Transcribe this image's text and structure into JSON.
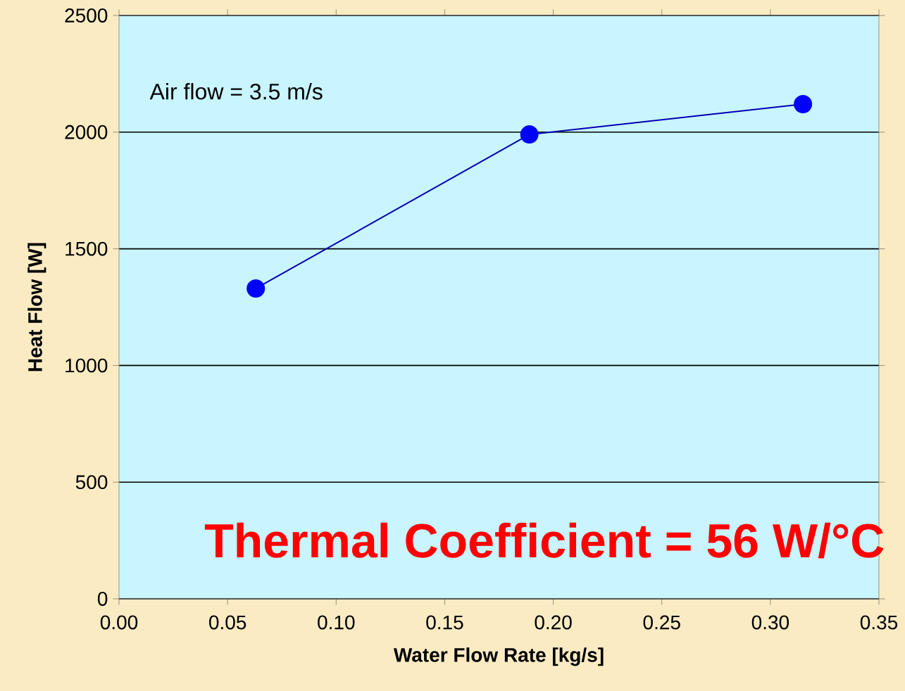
{
  "chart_data": {
    "type": "line",
    "xlabel": "Water Flow Rate [kg/s]",
    "ylabel": "Heat Flow [W]",
    "annotations": [
      "Air flow = 3.5 m/s",
      "Thermal Coefficient = 56 W/°C"
    ],
    "x": [
      0.063,
      0.189,
      0.315
    ],
    "series": [
      {
        "color": "#0000ff",
        "values": [
          1330,
          1990,
          2120
        ]
      }
    ],
    "xlim": [
      0,
      0.35
    ],
    "ylim": [
      0,
      2500
    ],
    "xticks": [
      {
        "value": 0,
        "label": "0.00"
      },
      {
        "value": 0.05,
        "label": "0.05"
      },
      {
        "value": 0.1,
        "label": "0.10"
      },
      {
        "value": 0.15,
        "label": "0.15"
      },
      {
        "value": 0.2,
        "label": "0.20"
      },
      {
        "value": 0.25,
        "label": "0.25"
      },
      {
        "value": 0.3,
        "label": "0.30"
      },
      {
        "value": 0.35,
        "label": "0.35"
      }
    ],
    "yticks": [
      0,
      500,
      1000,
      1500,
      2000,
      2500
    ],
    "grid": "y",
    "marker": "circle",
    "line_style": "solid"
  }
}
